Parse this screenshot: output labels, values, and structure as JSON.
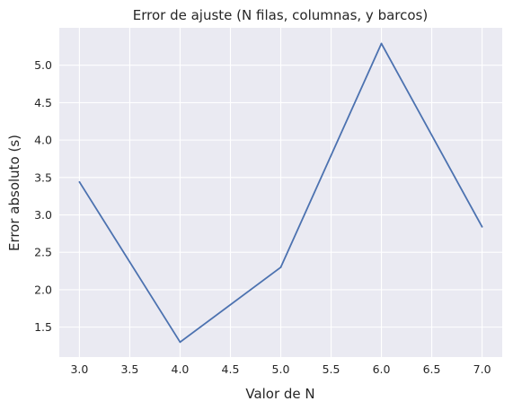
{
  "chart_data": {
    "type": "line",
    "title": "Error de ajuste (N filas, columnas, y barcos)",
    "xlabel": "Valor de N",
    "ylabel": "Error absoluto (s)",
    "x": [
      3.0,
      4.0,
      5.0,
      6.0,
      7.0
    ],
    "series": [
      {
        "values": [
          3.44,
          1.3,
          2.3,
          5.29,
          2.84
        ],
        "color": "#4c72b0"
      }
    ],
    "xlim": [
      2.8,
      7.2
    ],
    "ylim": [
      1.1,
      5.5
    ],
    "xticks": [
      "3.0",
      "3.5",
      "4.0",
      "4.5",
      "5.0",
      "5.5",
      "6.0",
      "6.5",
      "7.0"
    ],
    "yticks": [
      "1.5",
      "2.0",
      "2.5",
      "3.0",
      "3.5",
      "4.0",
      "4.5",
      "5.0"
    ],
    "grid": true,
    "background": "#eaeaf2"
  }
}
